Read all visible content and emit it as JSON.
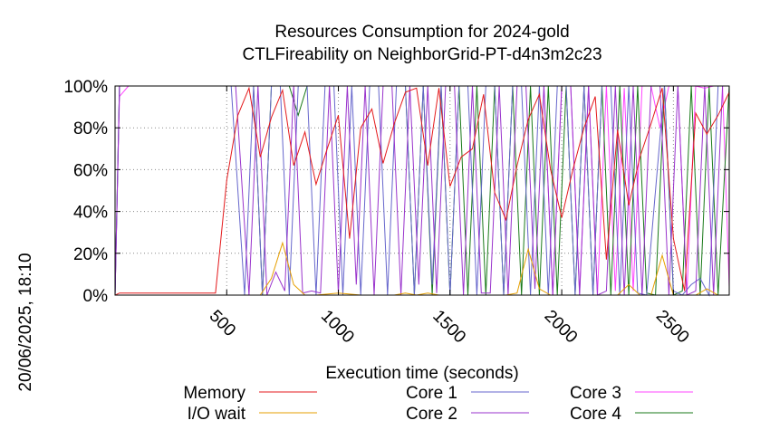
{
  "chart_data": {
    "type": "line",
    "title_line1": "Resources Consumption for 2024-gold",
    "title_line2": "CTLFireability on NeighborGrid-PT-d4n3m2c23",
    "xlabel": "Execution time (seconds)",
    "ylabel": "",
    "side_label": "20/06/2025, 18:10",
    "xlim": [
      0,
      2750
    ],
    "ylim": [
      0,
      100
    ],
    "x_ticks": [
      500,
      1000,
      1500,
      2000,
      2500
    ],
    "x_tick_labels": [
      "500",
      "1000",
      "1500",
      "2000",
      "2500"
    ],
    "y_ticks": [
      0,
      20,
      40,
      60,
      80,
      100
    ],
    "y_tick_labels": [
      "0%",
      "20%",
      "40%",
      "60%",
      "80%",
      "100%"
    ],
    "grid": true,
    "legend_position": "bottom",
    "series": [
      {
        "name": "Memory",
        "color": "#e41a1c",
        "x": [
          0,
          20,
          60,
          100,
          200,
          300,
          400,
          450,
          500,
          550,
          600,
          650,
          700,
          750,
          800,
          850,
          900,
          950,
          1000,
          1050,
          1100,
          1150,
          1200,
          1250,
          1300,
          1350,
          1400,
          1450,
          1500,
          1550,
          1600,
          1650,
          1700,
          1750,
          1800,
          1850,
          1900,
          1950,
          2000,
          2050,
          2100,
          2150,
          2200,
          2250,
          2300,
          2350,
          2400,
          2450,
          2500,
          2550,
          2600,
          2650,
          2700,
          2750
        ],
        "y": [
          0,
          1,
          1,
          1,
          1,
          1,
          1,
          1,
          55,
          86,
          99,
          66,
          85,
          98,
          62,
          78,
          53,
          70,
          86,
          27,
          80,
          89,
          63,
          82,
          97,
          99,
          62,
          99,
          52,
          66,
          70,
          96,
          49,
          36,
          62,
          84,
          96,
          60,
          37,
          60,
          80,
          95,
          17,
          79,
          43,
          66,
          82,
          99,
          27,
          2,
          87,
          77,
          86,
          97
        ]
      },
      {
        "name": "I/O wait",
        "color": "#e69f00",
        "x": [
          0,
          100,
          500,
          600,
          650,
          700,
          750,
          800,
          850,
          900,
          1000,
          1100,
          1200,
          1250,
          1300,
          1350,
          1400,
          1450,
          1500,
          1600,
          1700,
          1750,
          1800,
          1850,
          1900,
          1950,
          2000,
          2100,
          2200,
          2250,
          2300,
          2350,
          2400,
          2450,
          2500,
          2550,
          2600,
          2650,
          2700,
          2750
        ],
        "y": [
          0,
          0,
          0,
          0,
          0,
          8,
          25,
          5,
          0,
          0,
          1,
          0,
          0,
          0,
          1,
          0,
          1,
          0,
          0,
          0,
          0,
          0,
          1,
          22,
          3,
          0,
          0,
          0,
          0,
          0,
          5,
          0,
          0,
          19,
          0,
          0,
          0,
          3,
          0,
          0
        ]
      },
      {
        "name": "Core 1",
        "color": "#6666cc",
        "x": [
          0,
          20,
          60,
          100,
          500,
          520,
          580,
          620,
          660,
          700,
          740,
          780,
          820,
          860,
          900,
          940,
          980,
          1020,
          1060,
          1100,
          1140,
          1180,
          1220,
          1260,
          1300,
          1340,
          1380,
          1420,
          1460,
          1500,
          1540,
          1580,
          1620,
          1660,
          1700,
          1740,
          1780,
          1820,
          1860,
          1900,
          1940,
          1980,
          2020,
          2060,
          2100,
          2140,
          2180,
          2220,
          2260,
          2300,
          2340,
          2380,
          2420,
          2460,
          2500,
          2540,
          2580,
          2620,
          2660,
          2700,
          2750
        ],
        "y": [
          0,
          100,
          100,
          100,
          100,
          100,
          0,
          100,
          0,
          100,
          100,
          0,
          100,
          100,
          0,
          100,
          100,
          0,
          100,
          0,
          100,
          100,
          0,
          100,
          100,
          0,
          100,
          5,
          100,
          0,
          100,
          100,
          0,
          100,
          100,
          0,
          100,
          100,
          0,
          100,
          0,
          100,
          100,
          0,
          100,
          0,
          100,
          100,
          0,
          100,
          1,
          0,
          50,
          100,
          2,
          0,
          5,
          8,
          0,
          100,
          100
        ]
      },
      {
        "name": "Core 2",
        "color": "#9933cc",
        "x": [
          0,
          20,
          60,
          100,
          500,
          540,
          600,
          640,
          680,
          720,
          760,
          800,
          840,
          880,
          920,
          960,
          1000,
          1040,
          1080,
          1120,
          1160,
          1200,
          1240,
          1280,
          1320,
          1360,
          1400,
          1440,
          1480,
          1520,
          1560,
          1600,
          1640,
          1680,
          1720,
          1760,
          1800,
          1840,
          1880,
          1920,
          1960,
          2000,
          2040,
          2080,
          2120,
          2160,
          2200,
          2240,
          2280,
          2320,
          2360,
          2400,
          2440,
          2480,
          2520,
          2560,
          2600,
          2640,
          2680,
          2720,
          2750
        ],
        "y": [
          0,
          100,
          100,
          100,
          100,
          100,
          0,
          100,
          0,
          11,
          2,
          100,
          1,
          2,
          1,
          100,
          1,
          100,
          5,
          100,
          0,
          100,
          100,
          0,
          100,
          5,
          100,
          1,
          100,
          100,
          0,
          100,
          1,
          1,
          100,
          0,
          100,
          100,
          3,
          100,
          0,
          100,
          100,
          0,
          100,
          0,
          2,
          100,
          0,
          100,
          0,
          100,
          100,
          0,
          100,
          0,
          2,
          100,
          0,
          100,
          100
        ]
      },
      {
        "name": "Core 3",
        "color": "#ff44ff",
        "x": [
          0,
          20,
          60,
          100,
          500,
          560,
          600,
          640,
          680,
          720,
          760,
          800,
          840,
          880,
          920,
          960,
          1000,
          1040,
          1080,
          1120,
          1160,
          1200,
          1240,
          1280,
          1320,
          1360,
          1400,
          1440,
          1480,
          1520,
          1560,
          1600,
          1640,
          1680,
          1720,
          1760,
          1800,
          1840,
          1880,
          1920,
          1960,
          2000,
          2040,
          2080,
          2120,
          2160,
          2200,
          2240,
          2280,
          2320,
          2360,
          2400,
          2440,
          2480,
          2520,
          2560,
          2600,
          2640,
          2680,
          2720,
          2750
        ],
        "y": [
          0,
          95,
          100,
          100,
          100,
          100,
          100,
          100,
          100,
          100,
          100,
          100,
          100,
          100,
          100,
          100,
          100,
          100,
          100,
          100,
          100,
          100,
          100,
          100,
          100,
          100,
          100,
          100,
          100,
          100,
          100,
          100,
          100,
          100,
          100,
          100,
          100,
          100,
          100,
          100,
          0,
          100,
          100,
          1,
          100,
          0,
          100,
          2,
          99,
          2,
          100,
          100,
          80,
          100,
          100,
          0,
          100,
          99,
          100,
          100,
          4
        ]
      },
      {
        "name": "Core 4",
        "color": "#1a7a1a",
        "x": [
          0,
          20,
          60,
          100,
          500,
          540,
          580,
          620,
          660,
          700,
          740,
          780,
          820,
          860,
          900,
          940,
          980,
          1020,
          1060,
          1100,
          1140,
          1180,
          1220,
          1260,
          1300,
          1340,
          1380,
          1420,
          1460,
          1500,
          1540,
          1580,
          1620,
          1660,
          1700,
          1740,
          1780,
          1820,
          1860,
          1900,
          1940,
          1980,
          2020,
          2060,
          2100,
          2140,
          2180,
          2220,
          2260,
          2300,
          2340,
          2380,
          2420,
          2460,
          2500,
          2540,
          2580,
          2620,
          2660,
          2700,
          2750
        ],
        "y": [
          0,
          100,
          100,
          100,
          100,
          100,
          100,
          100,
          0,
          100,
          100,
          100,
          86,
          100,
          100,
          100,
          100,
          100,
          100,
          100,
          100,
          100,
          100,
          100,
          100,
          0,
          100,
          0,
          99,
          0,
          100,
          0,
          100,
          0,
          100,
          0,
          100,
          0,
          100,
          0,
          100,
          0,
          100,
          0,
          100,
          0,
          100,
          0,
          100,
          0,
          100,
          1,
          0,
          100,
          0,
          2,
          100,
          0,
          100,
          0,
          100
        ]
      }
    ]
  }
}
